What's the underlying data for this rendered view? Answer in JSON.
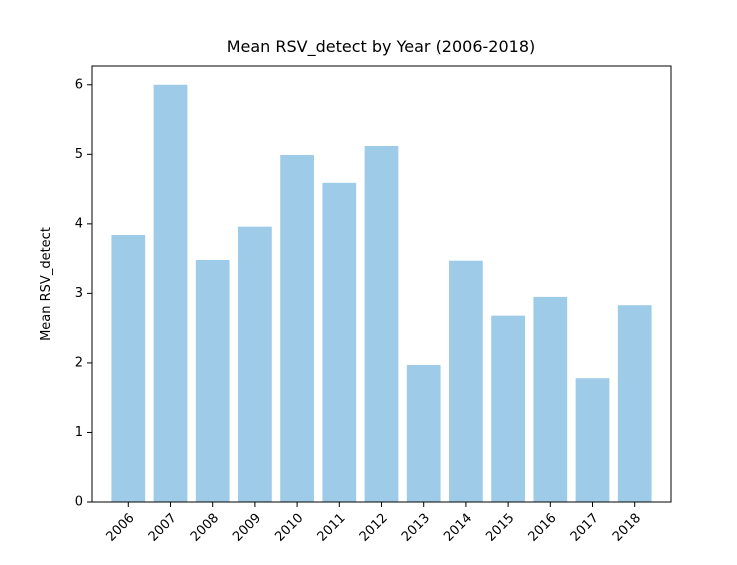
{
  "chart_data": {
    "type": "bar",
    "title": "Mean RSV_detect by Year (2006-2018)",
    "ylabel": "Mean RSV_detect",
    "categories": [
      "2006",
      "2007",
      "2008",
      "2009",
      "2010",
      "2011",
      "2012",
      "2013",
      "2014",
      "2015",
      "2016",
      "2017",
      "2018"
    ],
    "values": [
      3.84,
      6.0,
      3.48,
      3.96,
      4.99,
      4.59,
      5.12,
      1.97,
      3.47,
      2.68,
      2.95,
      1.78,
      2.83
    ],
    "color": "#9ecce8",
    "ylim": [
      0,
      6.27
    ],
    "yticks": [
      0,
      1,
      2,
      3,
      4,
      5,
      6
    ],
    "grid": false
  }
}
